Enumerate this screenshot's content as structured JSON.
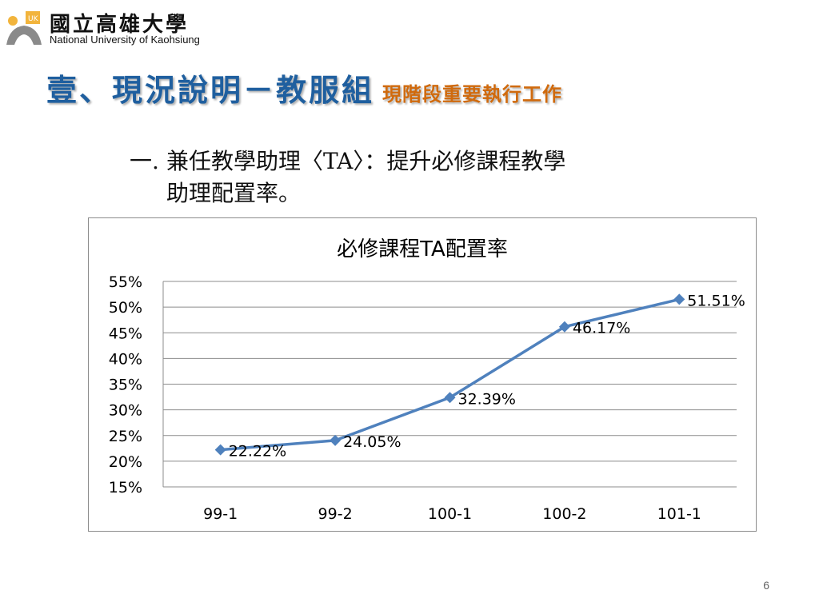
{
  "header": {
    "university_cn": "國立高雄大學",
    "university_en": "National University of Kaohsiung"
  },
  "title": {
    "main": "壹、現況說明－教服組",
    "sub": "現階段重要執行工作",
    "main_color": "#1f5f9f",
    "sub_color": "#d06a0d"
  },
  "bullet": {
    "number": "一.",
    "line1": "兼任教學助理〈TA〉：提升必修課程教學",
    "line2": "助理配置率。"
  },
  "chart_data": {
    "type": "line",
    "title": "必修課程TA配置率",
    "categories": [
      "99-1",
      "99-2",
      "100-1",
      "100-2",
      "101-1"
    ],
    "series": [
      {
        "values": [
          22.22,
          24.05,
          32.39,
          46.17,
          51.51
        ],
        "color": "#4f81bd"
      }
    ],
    "data_labels": [
      "22.22%",
      "24.05%",
      "32.39%",
      "46.17%",
      "51.51%"
    ],
    "y_ticks": [
      "15%",
      "20%",
      "25%",
      "30%",
      "35%",
      "40%",
      "45%",
      "50%",
      "55%"
    ],
    "ylim": [
      15,
      55
    ],
    "grid": true,
    "legend": "none"
  },
  "footer": {
    "page_number": "6"
  }
}
